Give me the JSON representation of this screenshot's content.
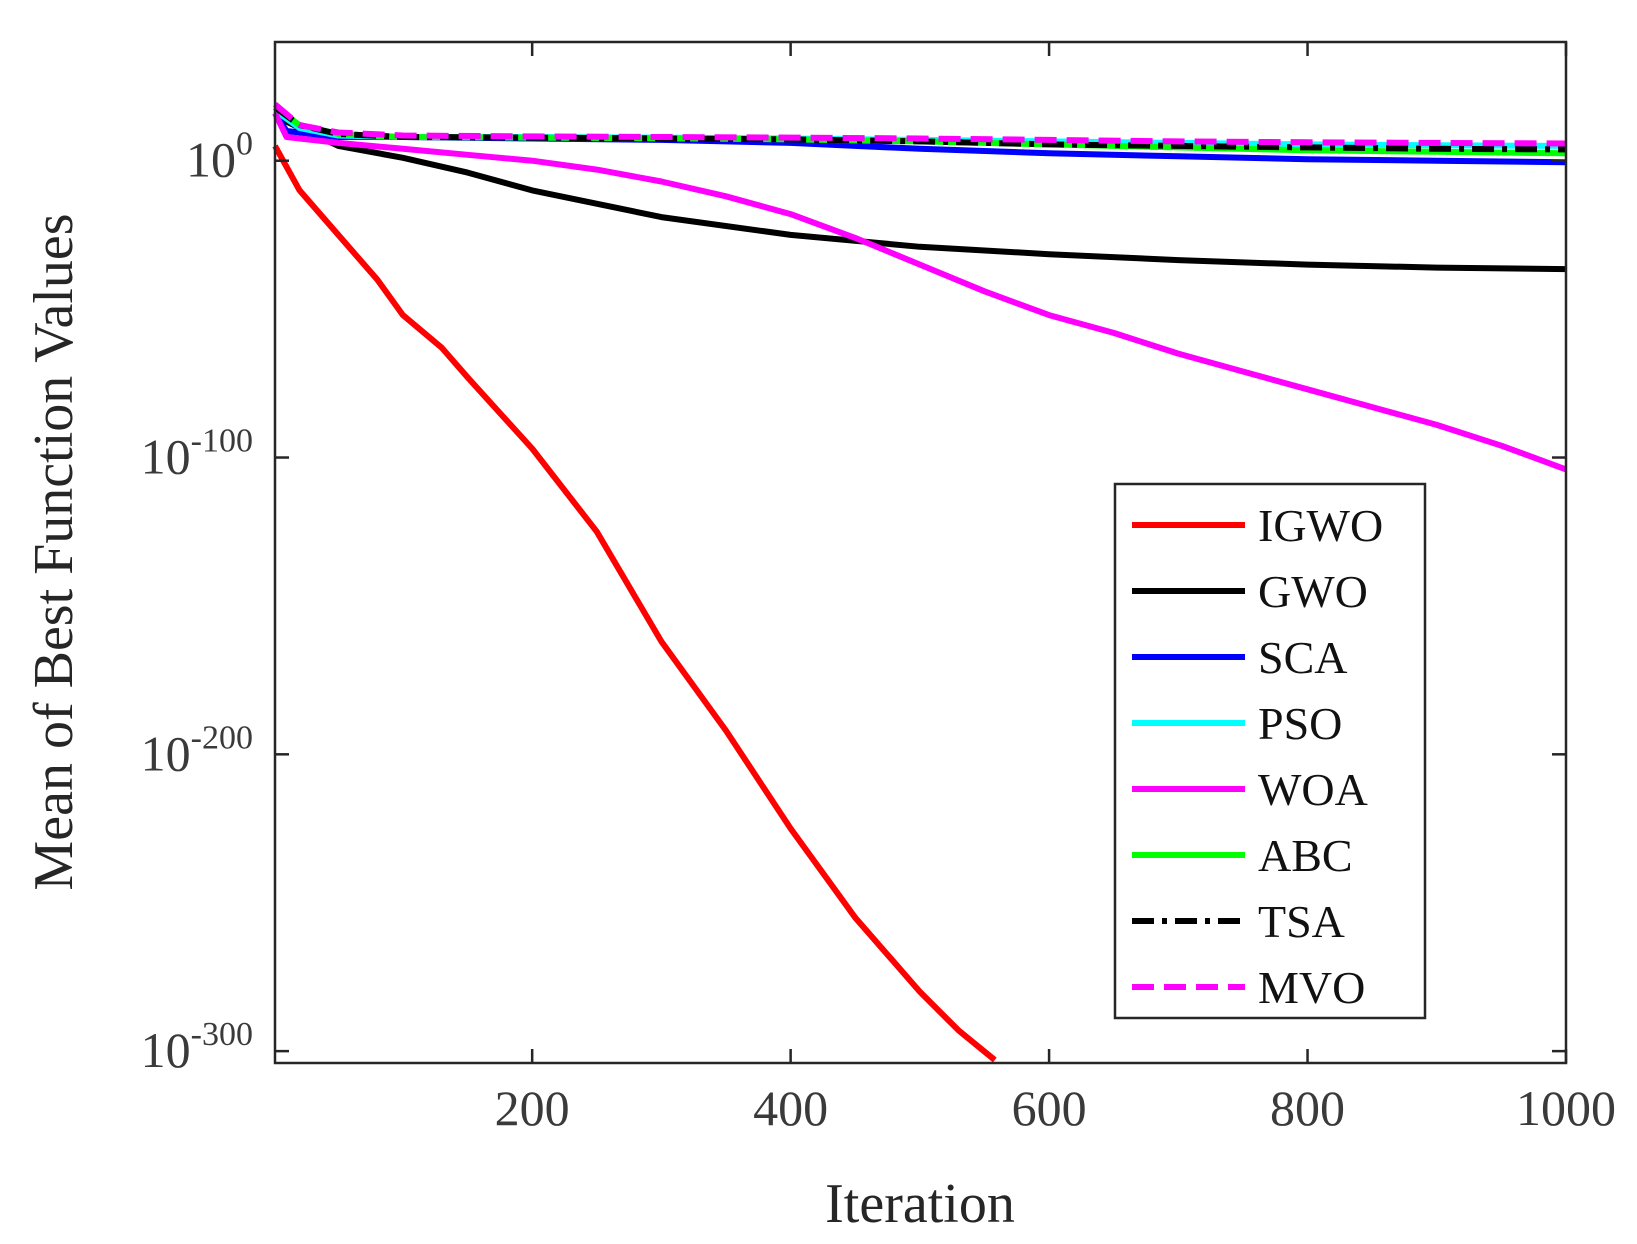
{
  "chart_data": {
    "type": "line",
    "title": "",
    "xlabel": "Iteration",
    "ylabel": "Mean of Best Function Values",
    "yscale": "log",
    "xlim": [
      1,
      1000
    ],
    "ylim_exp": [
      -304,
      40
    ],
    "x_ticks": [
      200,
      400,
      600,
      800,
      1000
    ],
    "y_ticks": [
      {
        "base": "10",
        "exp": "0",
        "value_exp": 0
      },
      {
        "base": "10",
        "exp": "-100",
        "value_exp": -100
      },
      {
        "base": "10",
        "exp": "-200",
        "value_exp": -200
      },
      {
        "base": "10",
        "exp": "-300",
        "value_exp": -300
      }
    ],
    "legend_position": "bottom-right",
    "series": [
      {
        "name": "IGWO",
        "color": "#ff0000",
        "style": "solid",
        "x": [
          1,
          20,
          50,
          80,
          100,
          130,
          150,
          200,
          250,
          300,
          350,
          400,
          450,
          500,
          530,
          558
        ],
        "log10_y": [
          5,
          -10,
          -25,
          -40,
          -52,
          -63,
          -73,
          -97,
          -125,
          -162,
          -192,
          -225,
          -255,
          -280,
          -293,
          -303
        ]
      },
      {
        "name": "GWO",
        "color": "#000000",
        "style": "solid",
        "x": [
          1,
          50,
          100,
          150,
          200,
          300,
          400,
          500,
          600,
          700,
          800,
          900,
          1000
        ],
        "log10_y": [
          15,
          5,
          1,
          -4,
          -10,
          -19,
          -25,
          -29,
          -31.5,
          -33.5,
          -35,
          -36,
          -36.5
        ]
      },
      {
        "name": "SCA",
        "color": "#0000ff",
        "style": "solid",
        "x": [
          1,
          10,
          50,
          100,
          200,
          300,
          400,
          500,
          600,
          700,
          800,
          900,
          1000
        ],
        "log10_y": [
          16,
          10,
          8,
          8,
          7.5,
          7,
          6,
          4,
          2.5,
          1.5,
          0.5,
          0,
          -0.5
        ]
      },
      {
        "name": "PSO",
        "color": "#00ffff",
        "style": "solid",
        "x": [
          1,
          20,
          50,
          100,
          200,
          300,
          400,
          500,
          600,
          700,
          800,
          900,
          1000
        ],
        "log10_y": [
          17,
          11,
          8.5,
          8,
          8,
          7.8,
          7.5,
          7,
          6.5,
          6,
          5.5,
          5.2,
          5
        ]
      },
      {
        "name": "WOA",
        "color": "#ff00ff",
        "style": "solid",
        "x": [
          1,
          10,
          50,
          100,
          150,
          200,
          250,
          300,
          350,
          400,
          450,
          500,
          550,
          600,
          650,
          700,
          750,
          800,
          850,
          900,
          950,
          1000
        ],
        "log10_y": [
          16,
          8,
          6,
          4,
          2,
          0,
          -3,
          -7,
          -12,
          -18,
          -26,
          -35,
          -44,
          -52,
          -58,
          -65,
          -71,
          -77,
          -83,
          -89,
          -96,
          -104
        ]
      },
      {
        "name": "ABC",
        "color": "#00ff00",
        "style": "solid",
        "x": [
          1,
          20,
          50,
          100,
          200,
          300,
          400,
          500,
          600,
          700,
          800,
          900,
          1000
        ],
        "log10_y": [
          18,
          12,
          9,
          8,
          7.8,
          7.6,
          7.2,
          6.5,
          5.5,
          4.5,
          3.5,
          3,
          2.5
        ]
      },
      {
        "name": "TSA",
        "color": "#000000",
        "style": "dashdot",
        "x": [
          1,
          20,
          50,
          100,
          200,
          300,
          400,
          500,
          600,
          700,
          800,
          900,
          1000
        ],
        "log10_y": [
          18,
          12,
          9,
          8,
          7.8,
          7.5,
          7.2,
          6.5,
          5.5,
          5,
          4.5,
          4,
          3.8
        ]
      },
      {
        "name": "MVO",
        "color": "#ff00ff",
        "style": "dashed",
        "x": [
          1,
          20,
          50,
          100,
          200,
          300,
          400,
          500,
          600,
          700,
          800,
          900,
          1000
        ],
        "log10_y": [
          19,
          12,
          9.5,
          8.5,
          8.2,
          8,
          7.8,
          7.5,
          7,
          6.5,
          6.2,
          6,
          5.8
        ]
      }
    ]
  }
}
